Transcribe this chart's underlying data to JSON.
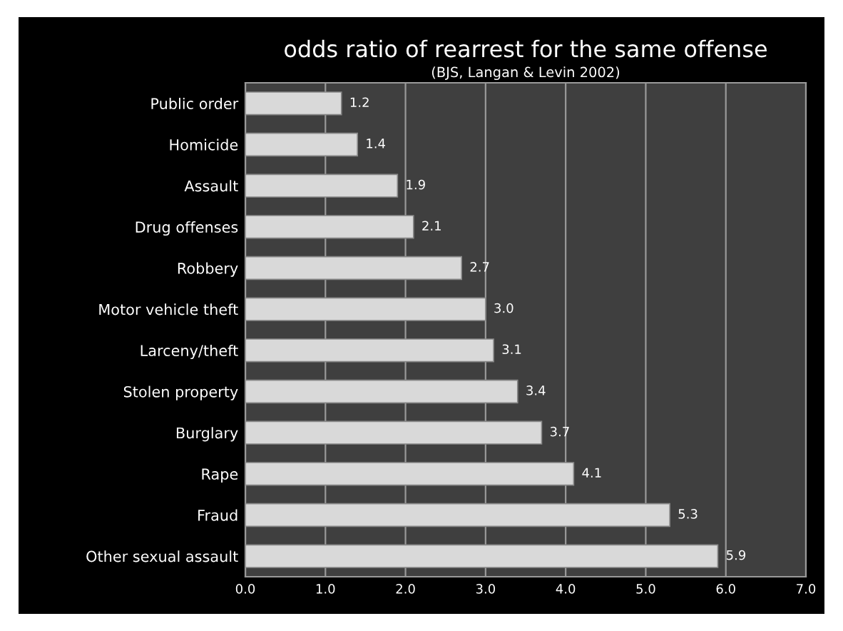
{
  "chart_data": {
    "type": "bar",
    "orientation": "horizontal",
    "title": "odds ratio of rearrest for the same offense",
    "subtitle": "(BJS, Langan & Levin 2002)",
    "categories": [
      "Public order",
      "Homicide",
      "Assault",
      "Drug offenses",
      "Robbery",
      "Motor vehicle theft",
      "Larceny/theft",
      "Stolen property",
      "Burglary",
      "Rape",
      "Fraud",
      "Other sexual assault"
    ],
    "values": [
      1.2,
      1.4,
      1.9,
      2.1,
      2.7,
      3.0,
      3.1,
      3.4,
      3.7,
      4.1,
      5.3,
      5.9
    ],
    "value_labels": [
      "1.2",
      "1.4",
      "1.9",
      "2.1",
      "2.7",
      "3.0",
      "3.1",
      "3.4",
      "3.7",
      "4.1",
      "5.3",
      "5.9"
    ],
    "color": "#d9d9d9",
    "xlim": [
      0,
      7
    ],
    "xticks": [
      {
        "value": 0,
        "label": "0.0"
      },
      {
        "value": 1,
        "label": "1.0"
      },
      {
        "value": 2,
        "label": "2.0"
      },
      {
        "value": 3,
        "label": "3.0"
      },
      {
        "value": 4,
        "label": "4.0"
      },
      {
        "value": 5,
        "label": "5.0"
      },
      {
        "value": 6,
        "label": "6.0"
      },
      {
        "value": 7,
        "label": "7.0"
      }
    ],
    "grid": "x"
  }
}
